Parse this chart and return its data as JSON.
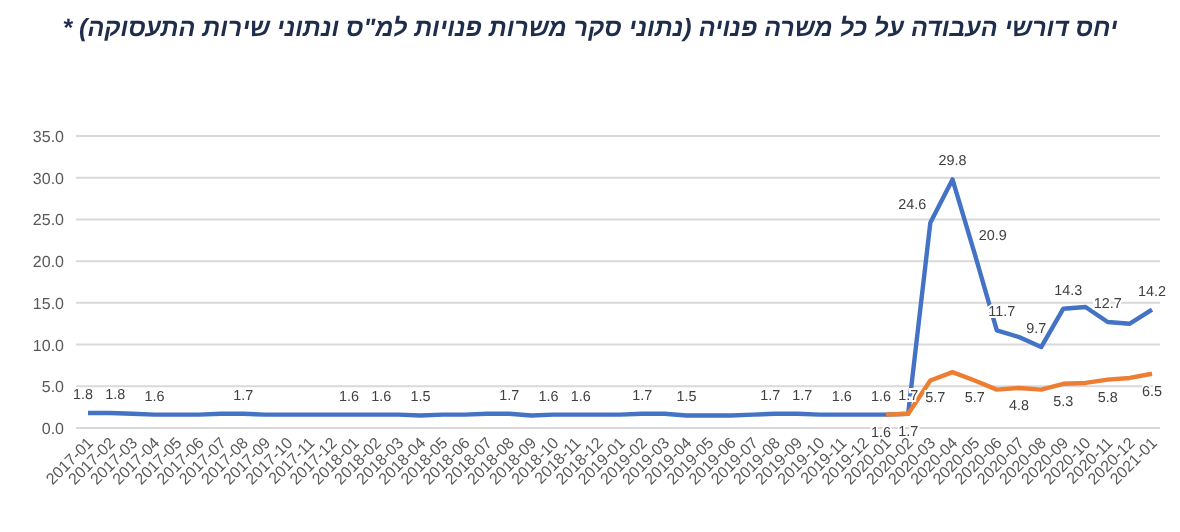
{
  "chart_data": {
    "type": "line",
    "title": "יחס דורשי העבודה על כל משרה פנויה (נתוני סקר משרות פנויות למ\"ס ונתוני שירות התעסוקה) *",
    "categories": [
      "2017-01",
      "2017-02",
      "2017-03",
      "2017-04",
      "2017-05",
      "2017-06",
      "2017-07",
      "2017-08",
      "2017-09",
      "2017-10",
      "2017-11",
      "2017-12",
      "2018-01",
      "2018-02",
      "2018-03",
      "2018-04",
      "2018-05",
      "2018-06",
      "2018-07",
      "2018-08",
      "2018-09",
      "2018-10",
      "2018-11",
      "2018-12",
      "2019-01",
      "2019-02",
      "2019-03",
      "2019-04",
      "2019-05",
      "2019-06",
      "2019-07",
      "2019-08",
      "2019-09",
      "2019-10",
      "2019-11",
      "2019-12",
      "2020-01",
      "2020-02",
      "2020-03",
      "2020-04",
      "2020-05",
      "2020-06",
      "2020-07",
      "2020-08",
      "2020-09",
      "2020-10",
      "2020-11",
      "2020-12",
      "2021-01"
    ],
    "series": [
      {
        "color": "#4472c4",
        "values": [
          1.8,
          1.8,
          1.7,
          1.6,
          1.6,
          1.6,
          1.7,
          1.7,
          1.6,
          1.6,
          1.6,
          1.6,
          1.6,
          1.6,
          1.6,
          1.5,
          1.6,
          1.6,
          1.7,
          1.7,
          1.5,
          1.6,
          1.6,
          1.6,
          1.6,
          1.7,
          1.7,
          1.5,
          1.5,
          1.5,
          1.6,
          1.7,
          1.7,
          1.6,
          1.6,
          1.6,
          1.6,
          1.7,
          24.6,
          29.8,
          20.9,
          11.7,
          10.9,
          9.7,
          14.3,
          14.5,
          12.7,
          12.5,
          14.2
        ],
        "value_labels": [
          "1.8",
          "1.8",
          null,
          "1.6",
          null,
          null,
          null,
          "1.7",
          null,
          null,
          null,
          null,
          "1.6",
          "1.6",
          null,
          "1.5",
          null,
          null,
          null,
          "1.7",
          null,
          "1.6",
          "1.6",
          null,
          null,
          "1.7",
          null,
          "1.5",
          null,
          null,
          null,
          "1.7",
          "1.7",
          null,
          "1.6",
          null,
          "1.6",
          "1.7",
          "24.6",
          "29.8",
          "20.9",
          "11.7",
          null,
          "9.7",
          "14.3",
          null,
          "12.7",
          null,
          "14.2"
        ]
      },
      {
        "color": "#ed7d31",
        "values": [
          null,
          null,
          null,
          null,
          null,
          null,
          null,
          null,
          null,
          null,
          null,
          null,
          null,
          null,
          null,
          null,
          null,
          null,
          null,
          null,
          null,
          null,
          null,
          null,
          null,
          null,
          null,
          null,
          null,
          null,
          null,
          null,
          null,
          null,
          null,
          null,
          1.6,
          1.7,
          5.7,
          6.7,
          5.7,
          4.6,
          4.8,
          4.6,
          5.3,
          5.4,
          5.8,
          6.0,
          6.5
        ],
        "value_labels": [
          null,
          null,
          null,
          null,
          null,
          null,
          null,
          null,
          null,
          null,
          null,
          null,
          null,
          null,
          null,
          null,
          null,
          null,
          null,
          null,
          null,
          null,
          null,
          null,
          null,
          null,
          null,
          null,
          null,
          null,
          null,
          null,
          null,
          null,
          null,
          null,
          "1.6",
          "1.7",
          "5.7",
          null,
          "5.7",
          null,
          "4.8",
          null,
          "5.3",
          null,
          "5.8",
          null,
          "6.5"
        ]
      }
    ],
    "ylim": [
      0,
      35
    ],
    "yticks": [
      {
        "value": 0,
        "label": "0.0"
      },
      {
        "value": 5,
        "label": "5.0"
      },
      {
        "value": 10,
        "label": "10.0"
      },
      {
        "value": 15,
        "label": "15.0"
      },
      {
        "value": 20,
        "label": "20.0"
      },
      {
        "value": 25,
        "label": "25.0"
      },
      {
        "value": 30,
        "label": "30.0"
      },
      {
        "value": 35,
        "label": "35.0"
      }
    ],
    "grid": "y",
    "marker": "none",
    "line_style": "solid"
  }
}
